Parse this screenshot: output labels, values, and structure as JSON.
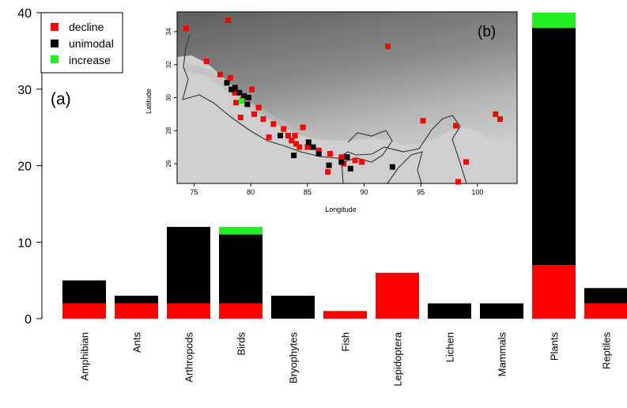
{
  "chart_data": [
    {
      "type": "bar",
      "panel_label": "(a)",
      "categories": [
        "Amphibian",
        "Ants",
        "Arthropods",
        "Birds",
        "Bryophytes",
        "Fish",
        "Lepidoptera",
        "Lichen",
        "Mammals",
        "Plants",
        "Reptiles"
      ],
      "series": [
        {
          "name": "decline",
          "values": [
            2,
            2,
            2,
            2,
            0,
            1,
            6,
            0,
            0,
            7,
            2
          ]
        },
        {
          "name": "unimodal",
          "values": [
            3,
            1,
            10,
            9,
            3,
            0,
            0,
            2,
            2,
            31,
            2
          ]
        },
        {
          "name": "increase",
          "values": [
            0,
            0,
            0,
            1,
            0,
            0,
            0,
            0,
            0,
            2,
            0
          ]
        }
      ],
      "stacked": true,
      "ylim": [
        0,
        40
      ],
      "yticks": [
        "0",
        "10",
        "20",
        "30",
        "40"
      ],
      "legend_position": "top-left",
      "colors": {
        "decline": "#ff0000",
        "unimodal": "#000000",
        "increase": "#22ee22"
      }
    },
    {
      "type": "scatter",
      "panel_label": "(b)",
      "xlabel": "Longitude",
      "ylabel": "Latitude",
      "xlim": [
        73.5,
        103.5
      ],
      "ylim": [
        24.8,
        35.2
      ],
      "xticks": [
        "75",
        "80",
        "85",
        "90",
        "95",
        "100"
      ],
      "yticks": [
        "26",
        "28",
        "30",
        "32",
        "34"
      ],
      "series": [
        {
          "name": "decline",
          "points": [
            [
              74.3,
              34.2
            ],
            [
              76.1,
              32.2
            ],
            [
              77.3,
              31.4
            ],
            [
              78.0,
              34.7
            ],
            [
              78.2,
              31.2
            ],
            [
              78.6,
              30.3
            ],
            [
              78.7,
              29.7
            ],
            [
              79.3,
              29.9
            ],
            [
              80.1,
              30.5
            ],
            [
              80.7,
              29.4
            ],
            [
              81.1,
              28.7
            ],
            [
              82.0,
              28.4
            ],
            [
              82.9,
              28.1
            ],
            [
              83.3,
              27.7
            ],
            [
              83.6,
              27.4
            ],
            [
              83.9,
              27.7
            ],
            [
              84.0,
              27.2
            ],
            [
              84.3,
              27.0
            ],
            [
              84.6,
              28.2
            ],
            [
              85.0,
              27.0
            ],
            [
              86.0,
              26.8
            ],
            [
              87.0,
              26.6
            ],
            [
              88.0,
              26.4
            ],
            [
              88.2,
              26.0
            ],
            [
              89.2,
              26.2
            ],
            [
              89.8,
              26.1
            ],
            [
              80.3,
              29.0
            ],
            [
              81.6,
              27.6
            ],
            [
              79.1,
              28.8
            ],
            [
              86.8,
              25.5
            ],
            [
              92.1,
              33.1
            ],
            [
              95.2,
              28.6
            ],
            [
              98.1,
              28.3
            ],
            [
              101.6,
              29.0
            ],
            [
              102.0,
              28.7
            ],
            [
              99.0,
              26.1
            ],
            [
              98.3,
              24.9
            ]
          ]
        },
        {
          "name": "unimodal",
          "points": [
            [
              77.9,
              30.9
            ],
            [
              78.3,
              30.5
            ],
            [
              78.6,
              30.6
            ],
            [
              79.0,
              30.3
            ],
            [
              79.4,
              30.1
            ],
            [
              79.8,
              30.0
            ],
            [
              79.7,
              29.6
            ],
            [
              82.6,
              27.7
            ],
            [
              83.8,
              26.5
            ],
            [
              85.1,
              27.3
            ],
            [
              85.5,
              27.0
            ],
            [
              86.0,
              26.6
            ],
            [
              86.9,
              25.9
            ],
            [
              88.0,
              26.1
            ],
            [
              88.5,
              26.4
            ],
            [
              88.8,
              25.7
            ],
            [
              92.5,
              25.8
            ]
          ]
        },
        {
          "name": "increase",
          "points": [
            [
              79.2,
              29.8
            ]
          ]
        }
      ]
    }
  ]
}
